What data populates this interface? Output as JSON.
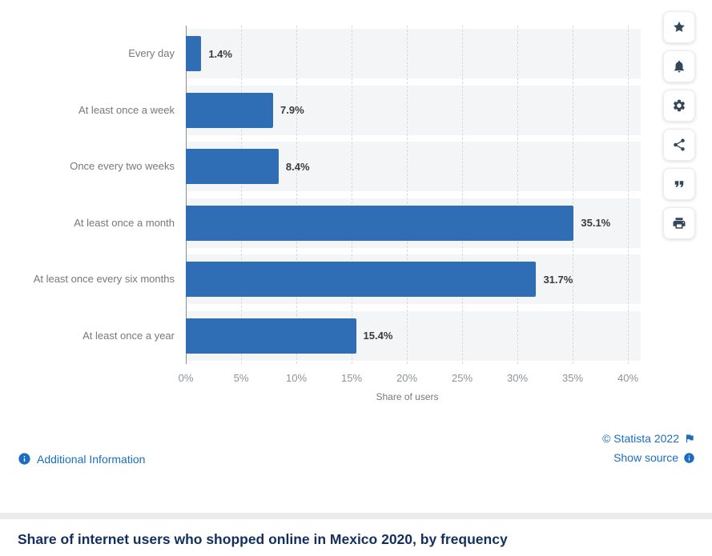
{
  "title": "Share of internet users who shopped online in Mexico 2020, by frequency",
  "chart_data": {
    "type": "bar",
    "orientation": "horizontal",
    "categories": [
      "Every day",
      "At least once a week",
      "Once every two weeks",
      "At least once a month",
      "At least once every six months",
      "At least once a year"
    ],
    "values": [
      1.4,
      7.9,
      8.4,
      35.1,
      31.7,
      15.4
    ],
    "value_labels": [
      "1.4%",
      "7.9%",
      "8.4%",
      "35.1%",
      "31.7%",
      "15.4%"
    ],
    "xlabel": "Share of users",
    "xlim": [
      0,
      40
    ],
    "xticks": [
      0,
      5,
      10,
      15,
      20,
      25,
      30,
      35,
      40
    ],
    "xtick_labels": [
      "0%",
      "5%",
      "10%",
      "15%",
      "20%",
      "25%",
      "30%",
      "35%",
      "40%"
    ],
    "grid": "vertical-dashed",
    "legend": "none",
    "bar_color": "#2f6eb5"
  },
  "toolbar": {
    "buttons": [
      {
        "name": "favorite",
        "icon": "star"
      },
      {
        "name": "notifications",
        "icon": "bell"
      },
      {
        "name": "settings",
        "icon": "gear"
      },
      {
        "name": "share",
        "icon": "share"
      },
      {
        "name": "cite",
        "icon": "quote"
      },
      {
        "name": "print",
        "icon": "print"
      }
    ]
  },
  "footer": {
    "additional_information": "Additional Information",
    "copyright": "© Statista 2022",
    "show_source": "Show source"
  },
  "colors": {
    "bar": "#2f6eb5",
    "link": "#1a6dc0",
    "title": "#12305e",
    "row_band": "#f4f5f7"
  }
}
